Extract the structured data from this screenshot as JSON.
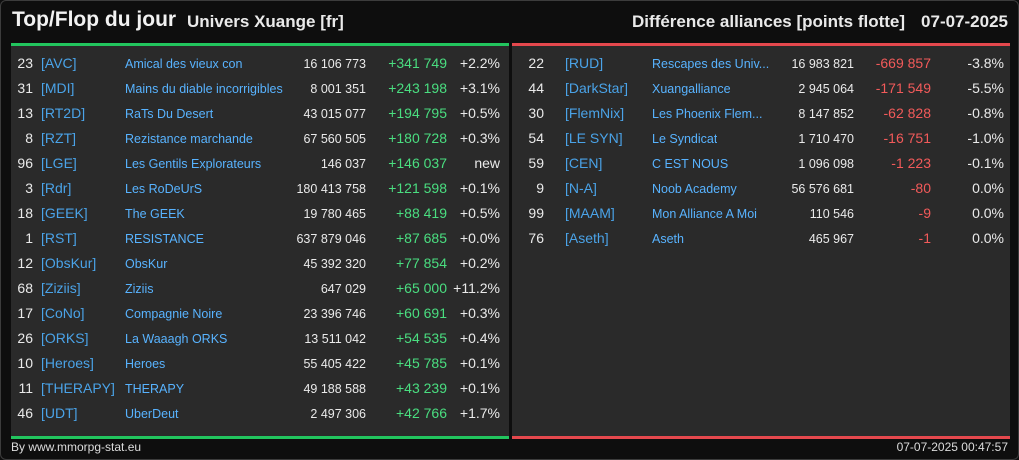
{
  "header": {
    "title": "Top/Flop du jour",
    "universe": "Univers Xuange [fr]",
    "subject": "Différence alliances [points flotte]",
    "date": "07-07-2025"
  },
  "colors": {
    "accent_top": "#22c55e",
    "accent_flop": "#e5484d",
    "positive": "#4ade80",
    "negative": "#f25a5a",
    "link": "#58b3ff"
  },
  "top": [
    {
      "rank": "23",
      "tag": "[AVC]",
      "name": "Amical des vieux con",
      "points": "16 106 773",
      "diff": "+341 749",
      "pct": "+2.2%"
    },
    {
      "rank": "31",
      "tag": "[MDI]",
      "name": "Mains du diable incorrigibles",
      "points": "8 001 351",
      "diff": "+243 198",
      "pct": "+3.1%"
    },
    {
      "rank": "13",
      "tag": "[RT2D]",
      "name": "RaTs Du Desert",
      "points": "43 015 077",
      "diff": "+194 795",
      "pct": "+0.5%"
    },
    {
      "rank": "8",
      "tag": "[RZT]",
      "name": "Rezistance marchande",
      "points": "67 560 505",
      "diff": "+180 728",
      "pct": "+0.3%"
    },
    {
      "rank": "96",
      "tag": "[LGE]",
      "name": "Les Gentils Explorateurs",
      "points": "146 037",
      "diff": "+146 037",
      "pct": "new"
    },
    {
      "rank": "3",
      "tag": "[Rdr]",
      "name": "Les RoDeUrS",
      "points": "180 413 758",
      "diff": "+121 598",
      "pct": "+0.1%"
    },
    {
      "rank": "18",
      "tag": "[GEEK]",
      "name": "The GEEK",
      "points": "19 780 465",
      "diff": "+88 419",
      "pct": "+0.5%"
    },
    {
      "rank": "1",
      "tag": "[RST]",
      "name": "RESISTANCE",
      "points": "637 879 046",
      "diff": "+87 685",
      "pct": "+0.0%"
    },
    {
      "rank": "12",
      "tag": "[ObsKur]",
      "name": "ObsKur",
      "points": "45 392 320",
      "diff": "+77 854",
      "pct": "+0.2%"
    },
    {
      "rank": "68",
      "tag": "[Ziziis]",
      "name": "Ziziis",
      "points": "647 029",
      "diff": "+65 000",
      "pct": "+11.2%"
    },
    {
      "rank": "17",
      "tag": "[CoNo]",
      "name": "Compagnie Noire",
      "points": "23 396 746",
      "diff": "+60 691",
      "pct": "+0.3%"
    },
    {
      "rank": "26",
      "tag": "[ORKS]",
      "name": "La Waaagh ORKS",
      "points": "13 511 042",
      "diff": "+54 535",
      "pct": "+0.4%"
    },
    {
      "rank": "10",
      "tag": "[Heroes]",
      "name": "Heroes",
      "points": "55 405 422",
      "diff": "+45 785",
      "pct": "+0.1%"
    },
    {
      "rank": "11",
      "tag": "[THERAPY]",
      "name": "THERAPY",
      "points": "49 188 588",
      "diff": "+43 239",
      "pct": "+0.1%"
    },
    {
      "rank": "46",
      "tag": "[UDT]",
      "name": "UberDeut",
      "points": "2 497 306",
      "diff": "+42 766",
      "pct": "+1.7%"
    }
  ],
  "flop": [
    {
      "rank": "22",
      "tag": "[RUD]",
      "name": "Rescapes des Univ...",
      "points": "16 983 821",
      "diff": "-669 857",
      "pct": "-3.8%"
    },
    {
      "rank": "44",
      "tag": "[DarkStar]",
      "name": "Xuangalliance",
      "points": "2 945 064",
      "diff": "-171 549",
      "pct": "-5.5%"
    },
    {
      "rank": "30",
      "tag": "[FlemNix]",
      "name": "Les Phoenix Flem...",
      "points": "8 147 852",
      "diff": "-62 828",
      "pct": "-0.8%"
    },
    {
      "rank": "54",
      "tag": "[LE SYN]",
      "name": "Le Syndicat",
      "points": "1 710 470",
      "diff": "-16 751",
      "pct": "-1.0%"
    },
    {
      "rank": "59",
      "tag": "[CEN]",
      "name": "C EST NOUS",
      "points": "1 096 098",
      "diff": "-1 223",
      "pct": "-0.1%"
    },
    {
      "rank": "9",
      "tag": "[N-A]",
      "name": "Noob Academy",
      "points": "56 576 681",
      "diff": "-80",
      "pct": "0.0%"
    },
    {
      "rank": "99",
      "tag": "[MAAM]",
      "name": "Mon Alliance A Moi",
      "points": "110 546",
      "diff": "-9",
      "pct": "0.0%"
    },
    {
      "rank": "76",
      "tag": "[Aseth]",
      "name": "Aseth",
      "points": "465 967",
      "diff": "-1",
      "pct": "0.0%"
    }
  ],
  "footer": {
    "credit": "By www.mmorpg-stat.eu",
    "timestamp": "07-07-2025 00:47:57"
  }
}
